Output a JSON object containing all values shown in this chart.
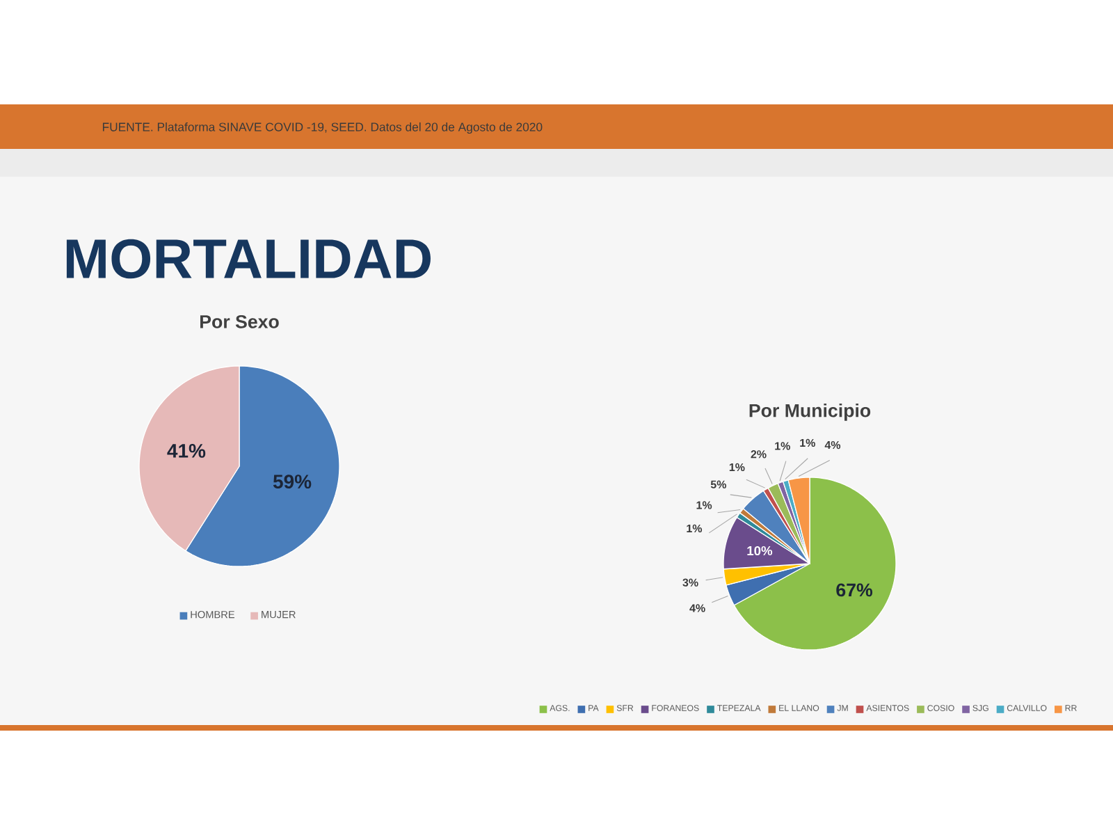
{
  "chart_data": [
    {
      "type": "other",
      "title": "MORTALIDAD",
      "annotations": [
        "FUENTE. Plataforma SINAVE COVID -19, SEED. Datos del 20 de Agosto de 2020"
      ]
    },
    {
      "type": "pie",
      "title": "Por Sexo",
      "categories": [
        "HOMBRE",
        "MUJER"
      ],
      "values": [
        59,
        41
      ],
      "colors": [
        "#4a7ebb",
        "#e6b9b8"
      ],
      "value_labels": [
        "59%",
        "41%"
      ],
      "legend": "bottom"
    },
    {
      "type": "pie",
      "title": "Por Municipio",
      "categories": [
        "AGS.",
        "PA",
        "SFR",
        "FORANEOS",
        "TEPEZALA",
        "EL LLANO",
        "JM",
        "ASIENTOS",
        "COSIO",
        "SJG",
        "CALVILLO",
        "RR"
      ],
      "values": [
        67,
        4,
        3,
        10,
        1,
        1,
        5,
        1,
        2,
        1,
        1,
        4
      ],
      "colors": [
        "#8cc04a",
        "#3f6fb0",
        "#ffc000",
        "#6a4c8c",
        "#2f8a9a",
        "#c07a3a",
        "#4f81bd",
        "#c0504d",
        "#9bbb59",
        "#8064a2",
        "#4bacc6",
        "#f79646"
      ],
      "value_labels": [
        "67%",
        "4%",
        "3%",
        "10%",
        "1%",
        "1%",
        "5%",
        "1%",
        "2%",
        "1%",
        "1%",
        "4%"
      ],
      "legend": "bottom"
    }
  ]
}
